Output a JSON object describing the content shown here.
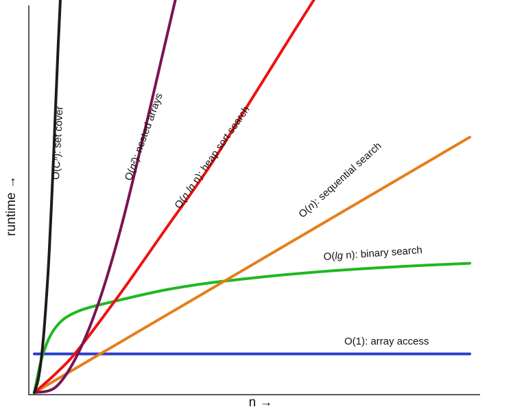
{
  "chart_data": {
    "type": "line",
    "title": "",
    "xlabel": "n →",
    "ylabel": "runtime →",
    "grid": false,
    "legend": "none",
    "series": [
      {
        "key": "constant",
        "label_main": "O(1): array access",
        "color": "#2a3fc9",
        "x": [
          0,
          1
        ],
        "y": [
          0.1,
          0.1
        ]
      },
      {
        "key": "log",
        "label_main": "O(",
        "label_ital": "lg",
        "label_tail": " n): binary search",
        "color": "#1fb81f",
        "x": [
          0,
          0.02,
          0.05,
          0.1,
          0.2,
          0.3,
          0.4,
          0.5,
          0.6,
          0.7,
          0.8,
          0.9,
          1.0
        ],
        "y": [
          0,
          0.1,
          0.17,
          0.21,
          0.24,
          0.265,
          0.283,
          0.296,
          0.307,
          0.316,
          0.323,
          0.329,
          0.334
        ]
      },
      {
        "key": "linear",
        "label_main": "O(",
        "label_ital": "n",
        "label_tail": "): sequential search",
        "color": "#e47f1c",
        "x": [
          0,
          1
        ],
        "y": [
          0,
          0.66
        ]
      },
      {
        "key": "nlogn",
        "label_main": "O(",
        "label_ital": "n ln",
        "label_tail": " n): heap sort search",
        "color": "#ee1111",
        "x": [
          0,
          0.05,
          0.1,
          0.2,
          0.3,
          0.4,
          0.5,
          0.55,
          0.6,
          0.645
        ],
        "y": [
          0,
          0.05,
          0.11,
          0.26,
          0.42,
          0.58,
          0.76,
          0.85,
          0.94,
          1.02
        ]
      },
      {
        "key": "quadratic",
        "label_main": "O(",
        "label_ital": "n²",
        "label_tail": "): nested arrays",
        "color": "#7a1453",
        "x": [
          0,
          0.05,
          0.1,
          0.15,
          0.2,
          0.25,
          0.3,
          0.325
        ],
        "y": [
          0,
          0.015,
          0.1,
          0.24,
          0.43,
          0.66,
          0.9,
          1.02
        ]
      },
      {
        "key": "exponential",
        "label_main": "O(",
        "label_ital": "Cⁿ",
        "label_tail": "): set cover",
        "color": "#1c1c1c",
        "x": [
          0,
          0.01,
          0.02,
          0.03,
          0.035,
          0.04,
          0.045,
          0.05,
          0.055,
          0.06
        ],
        "y": [
          0,
          0.04,
          0.13,
          0.28,
          0.38,
          0.5,
          0.63,
          0.77,
          0.9,
          1.02
        ]
      }
    ]
  }
}
